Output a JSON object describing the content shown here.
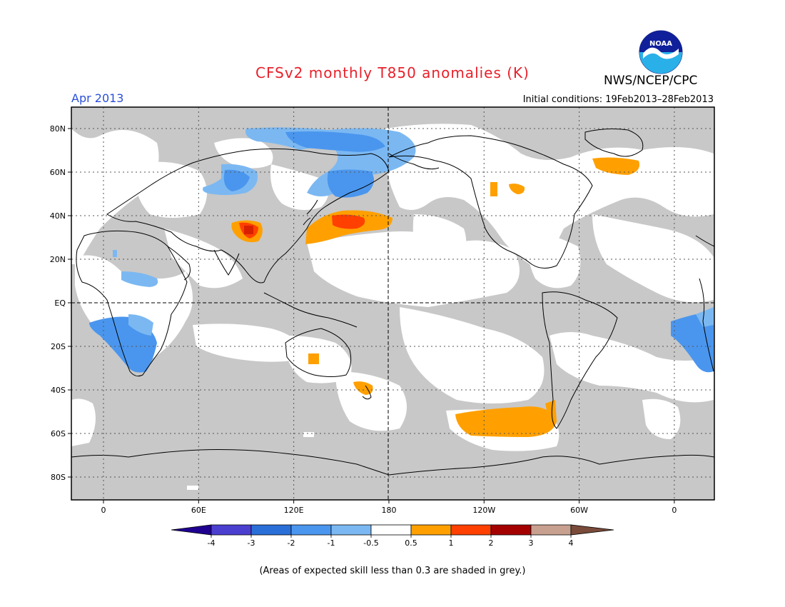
{
  "header": {
    "title": "CFSv2 monthly T850 anomalies (K)",
    "agency": "NWS/NCEP/CPC",
    "logo_text": "NOAA",
    "month": "Apr 2013",
    "initial_conditions": "Initial conditions: 19Feb2013–28Feb2013"
  },
  "map": {
    "lat_ticks": [
      "80N",
      "60N",
      "40N",
      "20N",
      "EQ",
      "20S",
      "40S",
      "60S",
      "80S"
    ],
    "lon_ticks": [
      "0",
      "60E",
      "120E",
      "180",
      "120W",
      "60W",
      "0"
    ],
    "colors": {
      "background": "#c8c8c8",
      "neutral": "#ffffff",
      "neg_1": "#7bb8f2",
      "neg_2": "#4a96ee",
      "pos_1": "#ffa000",
      "pos_2": "#ff4000",
      "pos_3": "#d82000"
    }
  },
  "colorbar": {
    "labels": [
      "-4",
      "-3",
      "-2",
      "-1",
      "-0.5",
      "0.5",
      "1",
      "2",
      "3",
      "4"
    ],
    "colors": [
      "#1f0090",
      "#4b3fd0",
      "#2a6fd8",
      "#4a96ee",
      "#7bb8f2",
      "#ffffff",
      "#ffa000",
      "#ff4000",
      "#a50000",
      "#c8a090",
      "#7a4b3a"
    ]
  },
  "footnote": "(Areas of expected skill less than 0.3 are shaded in grey.)"
}
